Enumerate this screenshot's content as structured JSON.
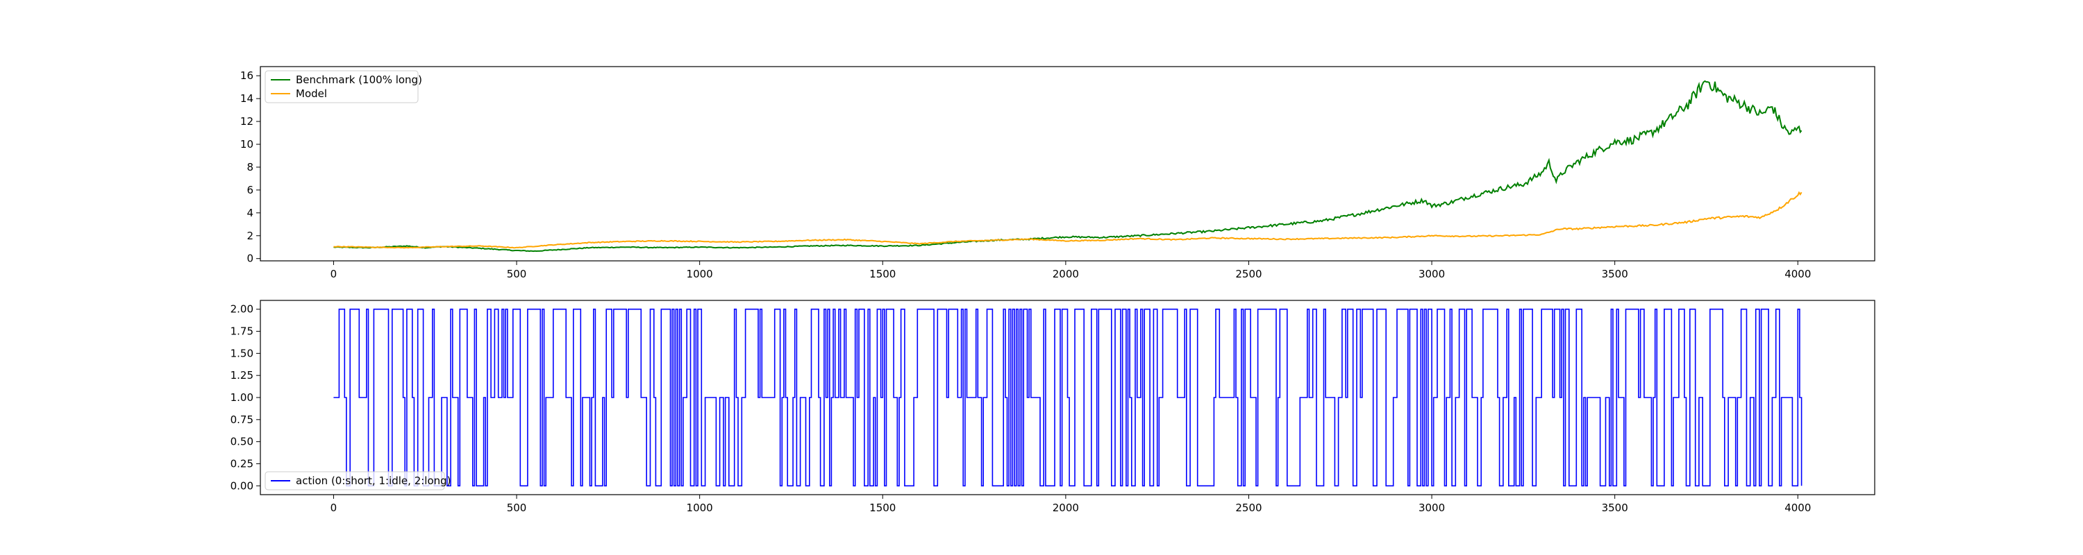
{
  "chart_data": [
    {
      "type": "line",
      "title": "",
      "xlabel": "",
      "ylabel": "",
      "xlim": [
        -200,
        4210
      ],
      "ylim": [
        -0.2,
        16.8
      ],
      "xticks": [
        0,
        500,
        1000,
        1500,
        2000,
        2500,
        3000,
        3500,
        4000
      ],
      "yticks": [
        0,
        2,
        4,
        6,
        8,
        10,
        12,
        14,
        16
      ],
      "grid": false,
      "legend_position": "upper-left",
      "series": [
        {
          "name": "Benchmark (100% long)",
          "color": "#008000",
          "points": [
            [
              0,
              1.0
            ],
            [
              100,
              0.95
            ],
            [
              200,
              1.1
            ],
            [
              250,
              0.95
            ],
            [
              300,
              1.05
            ],
            [
              400,
              0.9
            ],
            [
              500,
              0.7
            ],
            [
              550,
              0.65
            ],
            [
              700,
              0.95
            ],
            [
              800,
              1.0
            ],
            [
              900,
              0.95
            ],
            [
              1000,
              1.0
            ],
            [
              1100,
              0.95
            ],
            [
              1200,
              1.0
            ],
            [
              1300,
              1.1
            ],
            [
              1400,
              1.15
            ],
            [
              1500,
              1.1
            ],
            [
              1600,
              1.15
            ],
            [
              1700,
              1.4
            ],
            [
              1800,
              1.6
            ],
            [
              1900,
              1.7
            ],
            [
              2000,
              1.9
            ],
            [
              2100,
              1.85
            ],
            [
              2200,
              2.0
            ],
            [
              2300,
              2.2
            ],
            [
              2400,
              2.4
            ],
            [
              2500,
              2.7
            ],
            [
              2600,
              3.0
            ],
            [
              2700,
              3.3
            ],
            [
              2800,
              3.9
            ],
            [
              2900,
              4.6
            ],
            [
              2980,
              5.1
            ],
            [
              3000,
              4.6
            ],
            [
              3050,
              4.9
            ],
            [
              3100,
              5.4
            ],
            [
              3200,
              6.2
            ],
            [
              3250,
              6.5
            ],
            [
              3300,
              7.5
            ],
            [
              3320,
              8.4
            ],
            [
              3340,
              6.8
            ],
            [
              3360,
              7.6
            ],
            [
              3400,
              8.5
            ],
            [
              3450,
              9.4
            ],
            [
              3500,
              10.2
            ],
            [
              3550,
              10.4
            ],
            [
              3600,
              11.0
            ],
            [
              3650,
              12.2
            ],
            [
              3700,
              13.5
            ],
            [
              3730,
              14.8
            ],
            [
              3750,
              15.6
            ],
            [
              3770,
              15.1
            ],
            [
              3800,
              14.2
            ],
            [
              3850,
              13.5
            ],
            [
              3900,
              12.6
            ],
            [
              3930,
              13.3
            ],
            [
              3960,
              11.5
            ],
            [
              3980,
              10.9
            ],
            [
              4000,
              11.4
            ],
            [
              4010,
              11.2
            ]
          ]
        },
        {
          "name": "Model",
          "color": "#ffa500",
          "points": [
            [
              0,
              1.05
            ],
            [
              200,
              0.95
            ],
            [
              300,
              1.05
            ],
            [
              400,
              1.1
            ],
            [
              500,
              0.95
            ],
            [
              600,
              1.2
            ],
            [
              700,
              1.4
            ],
            [
              800,
              1.5
            ],
            [
              900,
              1.55
            ],
            [
              1000,
              1.5
            ],
            [
              1100,
              1.45
            ],
            [
              1200,
              1.5
            ],
            [
              1300,
              1.6
            ],
            [
              1400,
              1.65
            ],
            [
              1500,
              1.5
            ],
            [
              1600,
              1.3
            ],
            [
              1700,
              1.5
            ],
            [
              1800,
              1.6
            ],
            [
              1900,
              1.7
            ],
            [
              2000,
              1.55
            ],
            [
              2100,
              1.6
            ],
            [
              2200,
              1.75
            ],
            [
              2300,
              1.65
            ],
            [
              2400,
              1.8
            ],
            [
              2500,
              1.75
            ],
            [
              2600,
              1.7
            ],
            [
              2700,
              1.75
            ],
            [
              2800,
              1.8
            ],
            [
              2900,
              1.85
            ],
            [
              3000,
              2.0
            ],
            [
              3100,
              1.95
            ],
            [
              3200,
              2.0
            ],
            [
              3300,
              2.1
            ],
            [
              3350,
              2.6
            ],
            [
              3400,
              2.6
            ],
            [
              3500,
              2.8
            ],
            [
              3600,
              2.9
            ],
            [
              3700,
              3.2
            ],
            [
              3750,
              3.5
            ],
            [
              3800,
              3.6
            ],
            [
              3850,
              3.7
            ],
            [
              3900,
              3.6
            ],
            [
              3950,
              4.4
            ],
            [
              4000,
              5.6
            ],
            [
              4010,
              5.8
            ]
          ]
        }
      ]
    },
    {
      "type": "line",
      "title": "",
      "xlabel": "",
      "ylabel": "",
      "xlim": [
        -200,
        4210
      ],
      "ylim": [
        -0.1,
        2.1
      ],
      "xticks": [
        0,
        500,
        1000,
        1500,
        2000,
        2500,
        3000,
        3500,
        4000
      ],
      "yticks": [
        "0.00",
        "0.25",
        "0.50",
        "0.75",
        "1.00",
        "1.25",
        "1.50",
        "1.75",
        "2.00"
      ],
      "grid": false,
      "legend_position": "lower-left",
      "series": [
        {
          "name": "action (0:short, 1:idle, 2:long)",
          "color": "#0000ff",
          "values_range": [
            0,
            2
          ],
          "x_range": [
            0,
            4010
          ]
        }
      ]
    }
  ]
}
